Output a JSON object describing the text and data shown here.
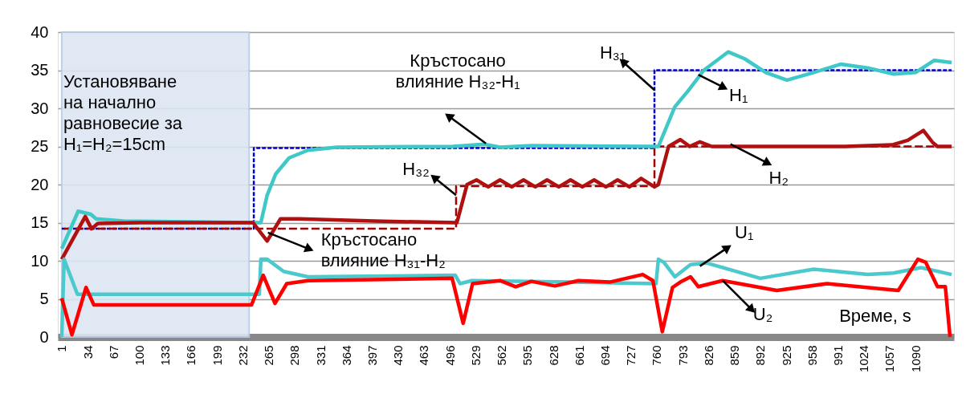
{
  "chart_data": {
    "type": "line",
    "xlabel": "Време, s",
    "xlim": [
      -4,
      1139
    ],
    "ylim": [
      0,
      40
    ],
    "xticks": [
      1,
      34,
      67,
      100,
      133,
      166,
      199,
      232,
      265,
      298,
      331,
      364,
      397,
      430,
      463,
      496,
      529,
      562,
      595,
      628,
      661,
      694,
      727,
      760,
      793,
      826,
      859,
      892,
      925,
      958,
      991,
      1024,
      1057,
      1090
    ],
    "yticks": [
      0,
      5,
      10,
      15,
      20,
      25,
      30,
      35,
      40
    ],
    "grid": "y",
    "bands": [
      {
        "axis": "x",
        "from": 1,
        "to": 240,
        "label": "Установяване\nна начално\nравновесие за\nH₁=H₂=15cm",
        "color": "#dce6f2"
      }
    ],
    "series": [
      {
        "type": "step",
        "color": "#0000cc",
        "line_style": "dashed",
        "x": [
          1,
          246,
          757,
          1136
        ],
        "values": [
          14.2,
          24.8,
          35,
          35
        ]
      },
      {
        "type": "step",
        "color": "#a00000",
        "line_style": "dashed",
        "x": [
          1,
          504,
          757,
          1136
        ],
        "values": [
          14.2,
          19.8,
          25,
          25
        ]
      },
      {
        "type": "line",
        "color": "#3ec8c8",
        "line_style": "solid",
        "x": [
          1,
          22,
          38,
          45,
          80,
          242,
          255,
          263,
          274,
          291,
          315,
          352,
          500,
          540,
          560,
          600,
          757,
          762,
          783,
          800,
          820,
          851,
          872,
          899,
          926,
          960,
          995,
          1029,
          1062,
          1090,
          1114,
          1136
        ],
        "values": [
          11.6,
          16.5,
          16.1,
          15.5,
          15.2,
          15,
          15,
          18.6,
          21.4,
          23.5,
          24.5,
          24.9,
          25,
          25.3,
          24.9,
          25.1,
          25,
          25,
          30.2,
          32.3,
          35,
          37.4,
          36.5,
          34.7,
          33.7,
          34.7,
          35.8,
          35.3,
          34.5,
          34.7,
          36.3,
          36
        ]
      },
      {
        "type": "line",
        "color": "#b01010",
        "line_style": "solid",
        "x": [
          1,
          31,
          39,
          47,
          100,
          245,
          263,
          280,
          304,
          400,
          505,
          518,
          530,
          545,
          560,
          575,
          590,
          605,
          620,
          635,
          650,
          665,
          680,
          695,
          710,
          725,
          740,
          757,
          762,
          775,
          790,
          802,
          815,
          830,
          900,
          1000,
          1060,
          1080,
          1100,
          1112,
          1118,
          1136
        ],
        "values": [
          10.2,
          15.8,
          14.2,
          14.9,
          15,
          15,
          12.6,
          15.5,
          15.5,
          15.2,
          15,
          20,
          20.6,
          19.7,
          20.6,
          19.7,
          20.6,
          19.7,
          20.6,
          19.7,
          20.6,
          19.7,
          20.6,
          19.7,
          20.6,
          19.7,
          20.8,
          19.7,
          20,
          25,
          25.9,
          25,
          25.6,
          25,
          25,
          25,
          25.2,
          25.8,
          27.1,
          25.5,
          25,
          25
        ]
      },
      {
        "type": "line",
        "color": "#4cc9cc",
        "line_style": "solid",
        "x": [
          1,
          4,
          21,
          43,
          253,
          255,
          263,
          284,
          315,
          503,
          509,
          524,
          650,
          759,
          762,
          769,
          783,
          803,
          824,
          892,
          960,
          1029,
          1062,
          1097,
          1136
        ],
        "values": [
          0,
          10.2,
          5.6,
          5.6,
          5.6,
          10.2,
          10.2,
          8.6,
          7.9,
          8.1,
          7,
          7.4,
          7.2,
          7,
          10.2,
          9.8,
          7.9,
          9.5,
          9.7,
          7.7,
          8.9,
          8.2,
          8.4,
          9.1,
          8.2
        ]
      },
      {
        "type": "line",
        "color": "#ff0000",
        "line_style": "solid",
        "x": [
          1,
          14,
          32,
          42,
          243,
          258,
          273,
          288,
          315,
          499,
          513,
          525,
          560,
          580,
          600,
          630,
          660,
          700,
          742,
          755,
          767,
          780,
          790,
          803,
          813,
          844,
          913,
          977,
          1068,
          1093,
          1103,
          1118,
          1128,
          1134
        ],
        "values": [
          5.1,
          0.3,
          6.5,
          4.2,
          4.2,
          8.1,
          4.4,
          7,
          7.4,
          7.7,
          1.8,
          7,
          7.4,
          6.6,
          7.3,
          6.7,
          7.4,
          7.2,
          8.2,
          7.4,
          0.7,
          6.5,
          7.2,
          7.9,
          6.6,
          7.4,
          6.1,
          7,
          6.1,
          10.2,
          9.8,
          6.6,
          6.6,
          0
        ]
      }
    ],
    "annotations": [
      {
        "text": "H₃₁",
        "x": 757,
        "y": 32.4
      },
      {
        "text": "H₁",
        "x": 813,
        "y": 34.4
      },
      {
        "text": "H₃₂",
        "x": 504,
        "y": 18.6
      },
      {
        "text": "H₂",
        "x": 854,
        "y": 25.3
      },
      {
        "text": "U₁",
        "x": 815,
        "y": 9.3
      },
      {
        "text": "U₂",
        "x": 844,
        "y": 7.4
      },
      {
        "text": "Кръстосано\nвлияние H₃₂-H₁",
        "x": 542,
        "y": 25.4
      },
      {
        "text": "Кръстосано\nвлияние H₃₁-H₂",
        "x": 264,
        "y": 13.7
      }
    ]
  }
}
